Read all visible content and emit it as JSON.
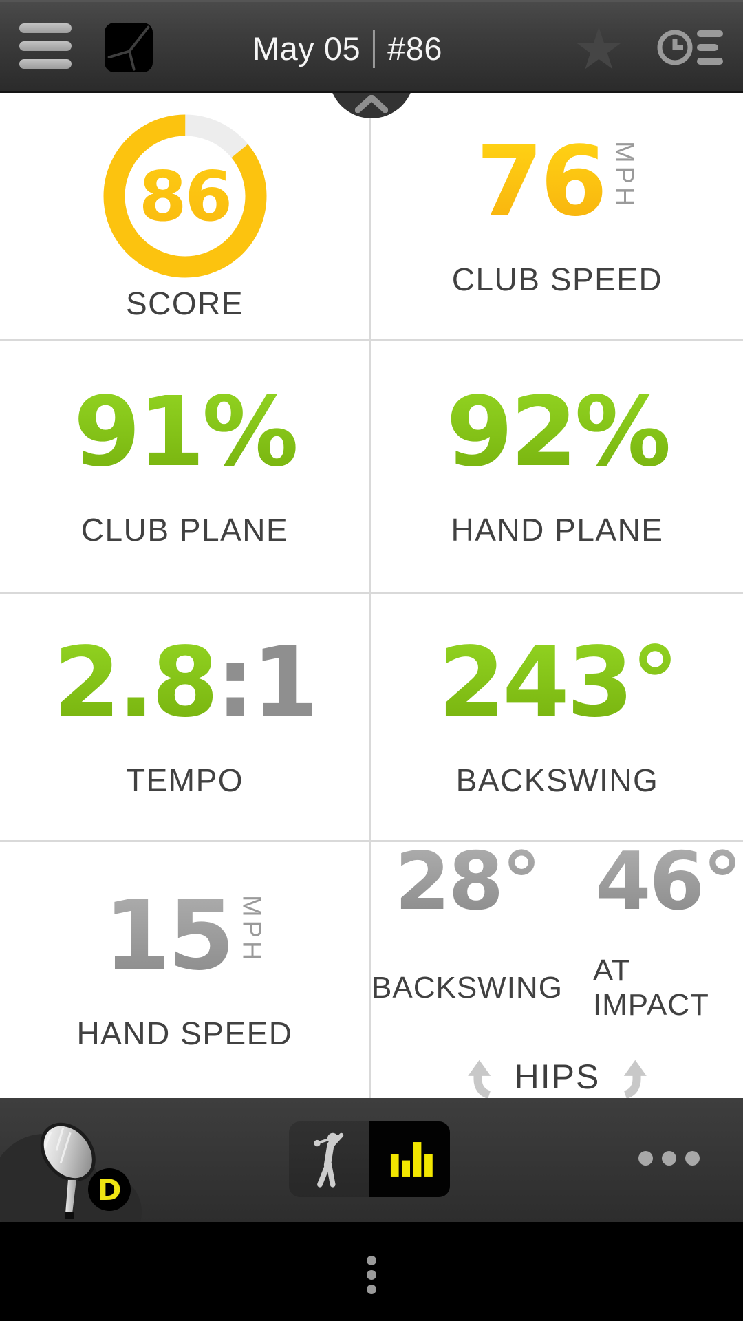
{
  "header": {
    "date": "May 05",
    "swing_number": "#86",
    "menu_icon": "hamburger-icon",
    "logo_icon": "zepp-logo",
    "favorite_icon": "star-icon",
    "history_icon": "clock-list-icon",
    "star_glyph": "★"
  },
  "panel_toggle": {
    "collapse_icon": "chevron-up-icon"
  },
  "metrics": {
    "score": {
      "value": "86",
      "label": "SCORE",
      "percent": 86
    },
    "club_speed": {
      "value": "76",
      "unit": "MPH",
      "label": "CLUB SPEED"
    },
    "club_plane": {
      "value": "91%",
      "label": "CLUB PLANE"
    },
    "hand_plane": {
      "value": "92%",
      "label": "HAND PLANE"
    },
    "tempo": {
      "value": "2.8",
      "ratio_suffix": ":1",
      "label": "TEMPO"
    },
    "club_backswing": {
      "value": "243°",
      "label": "BACKSWING"
    },
    "hand_speed": {
      "value": "15",
      "unit": "MPH",
      "label": "HAND SPEED"
    },
    "hips": {
      "backswing": {
        "value": "28°",
        "label": "BACKSWING"
      },
      "at_impact": {
        "value": "46°",
        "label": "AT IMPACT"
      },
      "label": "HIPS"
    }
  },
  "bottom_bar": {
    "club_badge": "D",
    "club_icon": "driver-club-icon",
    "swing_view_icon": "golfer-icon",
    "data_view_icon": "bar-chart-icon",
    "more_icon": "ellipsis-icon"
  },
  "system_nav": {
    "menu_icon": "vertical-dots-icon"
  },
  "colors": {
    "accent_yellow": "#FFC20E",
    "accent_green": "#84C51B",
    "metric_gray": "#9B9B9B",
    "label_dark": "#414141",
    "divider": "#D9D9D9"
  }
}
